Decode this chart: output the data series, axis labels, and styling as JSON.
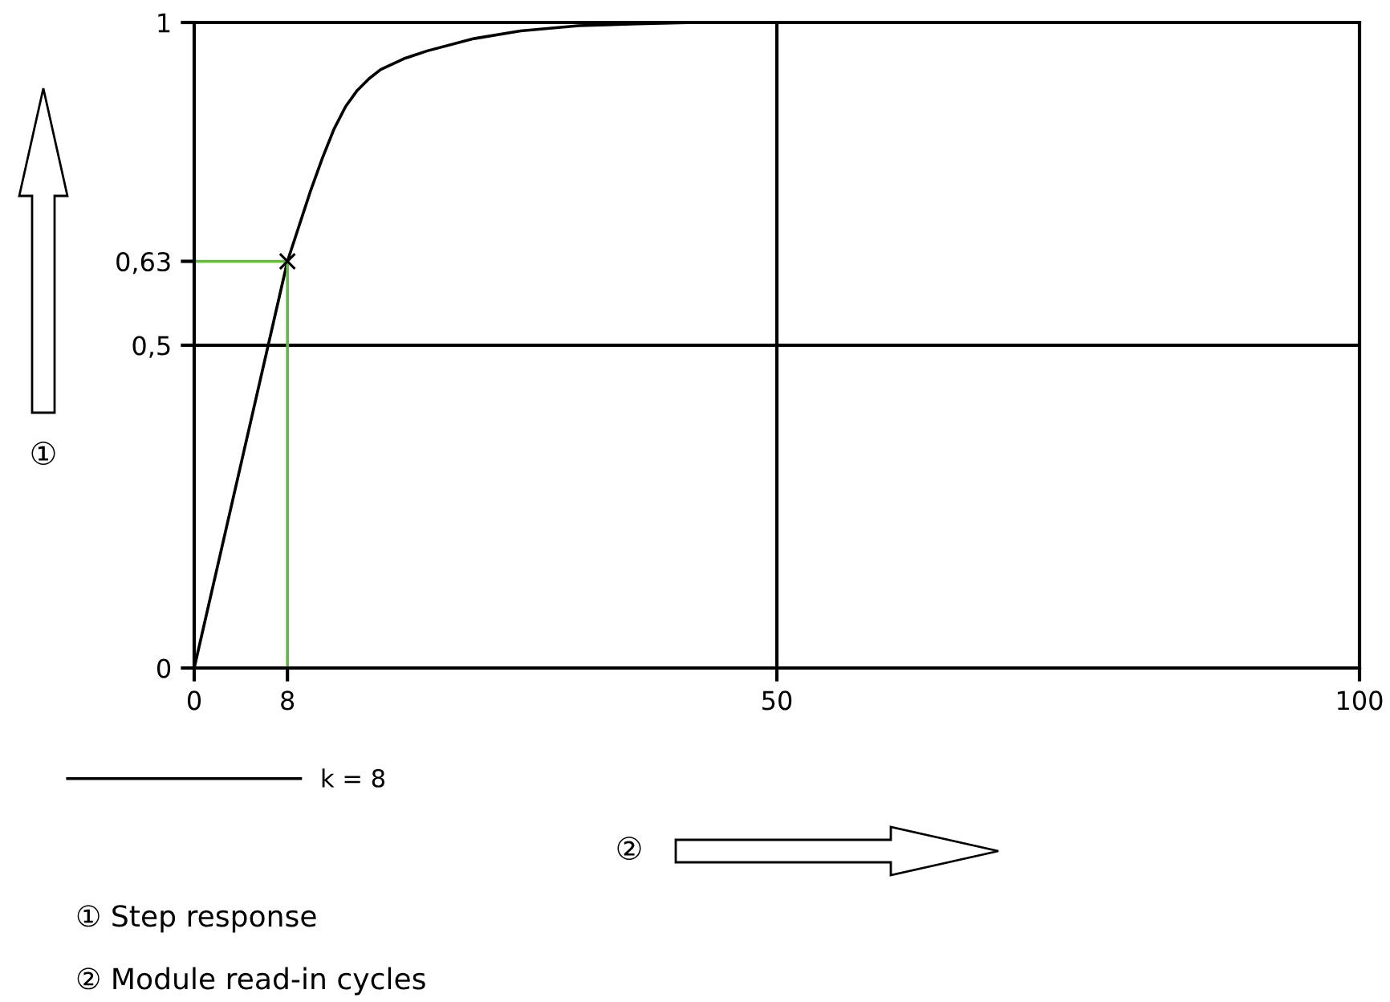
{
  "chart_data": {
    "type": "line",
    "xlim": [
      0,
      100
    ],
    "ylim": [
      0,
      1
    ],
    "xticks": [
      0,
      8,
      50,
      100
    ],
    "yticks": [
      0,
      {
        "value": 0.5,
        "label": "0,5"
      },
      {
        "value": 0.63,
        "label": "0,63"
      },
      1
    ],
    "xlabel": "②",
    "ylabel": "①",
    "series": [
      {
        "name": "k = 8",
        "color": "#000000",
        "x": [
          0,
          8,
          9,
          10,
          11,
          12,
          13,
          14,
          15,
          16,
          18,
          20,
          24,
          28,
          33,
          38,
          43,
          50
        ],
        "values": [
          0,
          0.63,
          0.685,
          0.74,
          0.79,
          0.835,
          0.87,
          0.895,
          0.913,
          0.927,
          0.944,
          0.956,
          0.975,
          0.987,
          0.995,
          0.998,
          1.0,
          1.0
        ]
      },
      {
        "color": "#5fb946",
        "x": [
          0,
          8,
          8
        ],
        "values": [
          0.63,
          0.63,
          0
        ]
      },
      {
        "type": "scatter",
        "color": "#000000",
        "marker": "cross",
        "x": [
          8
        ],
        "values": [
          0.63
        ]
      }
    ],
    "ref_lines": [
      {
        "axis": "y",
        "value": 0.5,
        "color": "#000000"
      },
      {
        "axis": "x",
        "value": 50,
        "color": "#000000"
      }
    ],
    "legend": "bottom left",
    "annotations": [
      "① Step response",
      "② Module read-in cycles"
    ]
  }
}
